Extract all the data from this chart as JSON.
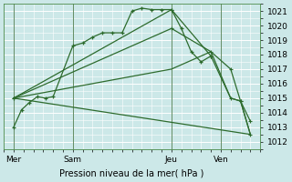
{
  "xlabel": "Pression niveau de la mer( hPa )",
  "bg_color": "#cce8e8",
  "grid_color": "#ffffff",
  "line_color": "#2d6b2d",
  "ylim": [
    1011.5,
    1021.5
  ],
  "yticks": [
    1012,
    1013,
    1014,
    1015,
    1016,
    1017,
    1018,
    1019,
    1020,
    1021
  ],
  "xtick_labels": [
    "Mer",
    "Sam",
    "Jeu",
    "Ven"
  ],
  "xtick_positions": [
    0.5,
    3.5,
    8.5,
    11.0
  ],
  "xlim": [
    0,
    13
  ],
  "series1_x": [
    0.5,
    0.9,
    1.3,
    1.7,
    2.1,
    2.5,
    3.5,
    4.0,
    4.5,
    5.0,
    5.5,
    6.0,
    6.5,
    7.0,
    7.5,
    8.0,
    8.5,
    9.0,
    9.5,
    10.0,
    10.5
  ],
  "series1_y": [
    1013.0,
    1014.2,
    1014.7,
    1015.1,
    1015.0,
    1015.1,
    1018.6,
    1018.8,
    1019.2,
    1019.5,
    1019.5,
    1019.5,
    1021.0,
    1021.2,
    1021.1,
    1021.1,
    1021.1,
    1019.8,
    1018.2,
    1017.5,
    1017.9
  ],
  "series2_x": [
    0.5,
    8.5,
    10.5,
    11.5,
    12.0,
    12.5
  ],
  "series2_y": [
    1015.0,
    1019.8,
    1018.2,
    1017.0,
    1014.8,
    1013.4
  ],
  "series3_x": [
    0.5,
    8.5,
    10.5,
    11.5,
    12.0,
    12.5
  ],
  "series3_y": [
    1015.0,
    1021.1,
    1017.9,
    1015.0,
    1014.8,
    1012.5
  ],
  "series4_x": [
    0.5,
    8.5,
    10.5,
    11.5,
    12.0,
    12.5
  ],
  "series4_y": [
    1015.0,
    1017.0,
    1018.2,
    1015.0,
    1014.8,
    1012.5
  ],
  "series5_x": [
    0.5,
    12.5
  ],
  "series5_y": [
    1015.0,
    1012.5
  ]
}
